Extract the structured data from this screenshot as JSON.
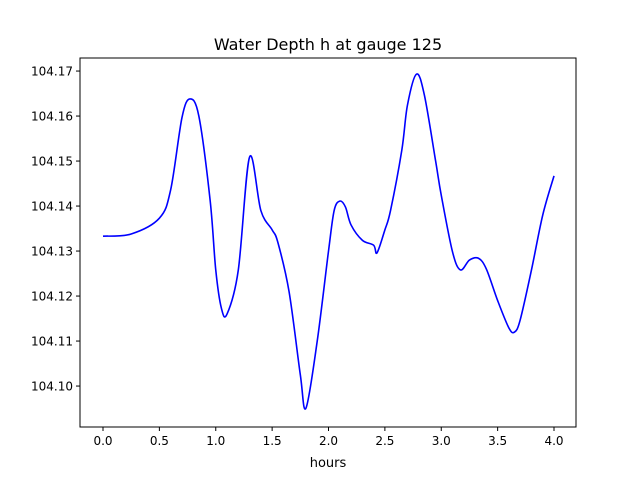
{
  "chart_data": {
    "type": "line",
    "title": "Water Depth h at gauge 125",
    "xlabel": "hours",
    "ylabel": "",
    "xlim": [
      -0.204,
      4.195
    ],
    "ylim": [
      104.0909,
      104.1729
    ],
    "xticks": [
      0.0,
      0.5,
      1.0,
      1.5,
      2.0,
      2.5,
      3.0,
      3.5,
      4.0
    ],
    "xtick_labels": [
      "0.0",
      "0.5",
      "1.0",
      "1.5",
      "2.0",
      "2.5",
      "3.0",
      "3.5",
      "4.0"
    ],
    "yticks": [
      104.1,
      104.11,
      104.12,
      104.13,
      104.14,
      104.15,
      104.16,
      104.17
    ],
    "ytick_labels": [
      "104.10",
      "104.11",
      "104.12",
      "104.13",
      "104.14",
      "104.15",
      "104.16",
      "104.17"
    ],
    "grid": false,
    "series": [
      {
        "name": "h",
        "color": "#0000ff",
        "x": [
          0.0,
          0.25,
          0.5,
          0.6,
          0.7,
          0.77,
          0.85,
          0.95,
          1.0,
          1.05,
          1.1,
          1.2,
          1.3,
          1.4,
          1.5,
          1.55,
          1.65,
          1.75,
          1.8,
          1.9,
          2.0,
          2.05,
          2.1,
          2.15,
          2.2,
          2.3,
          2.4,
          2.43,
          2.5,
          2.55,
          2.65,
          2.7,
          2.78,
          2.85,
          2.95,
          3.0,
          3.1,
          3.17,
          3.25,
          3.33,
          3.4,
          3.5,
          3.6,
          3.65,
          3.7,
          3.8,
          3.9,
          4.0
        ],
        "y": [
          104.1333,
          104.1338,
          104.1373,
          104.1436,
          104.1596,
          104.1638,
          104.16,
          104.1413,
          104.1258,
          104.1173,
          104.116,
          104.1258,
          104.1509,
          104.139,
          104.1347,
          104.132,
          104.121,
          104.1025,
          104.0951,
          104.11,
          104.13,
          104.139,
          104.1411,
          104.1398,
          104.1358,
          104.1324,
          104.1313,
          104.1296,
          104.1347,
          104.139,
          104.1524,
          104.1624,
          104.1693,
          104.1647,
          104.15,
          104.1424,
          104.1298,
          104.1258,
          104.128,
          104.1284,
          104.126,
          104.119,
          104.1129,
          104.112,
          104.1147,
          104.1258,
          104.138,
          104.1467
        ]
      }
    ]
  }
}
